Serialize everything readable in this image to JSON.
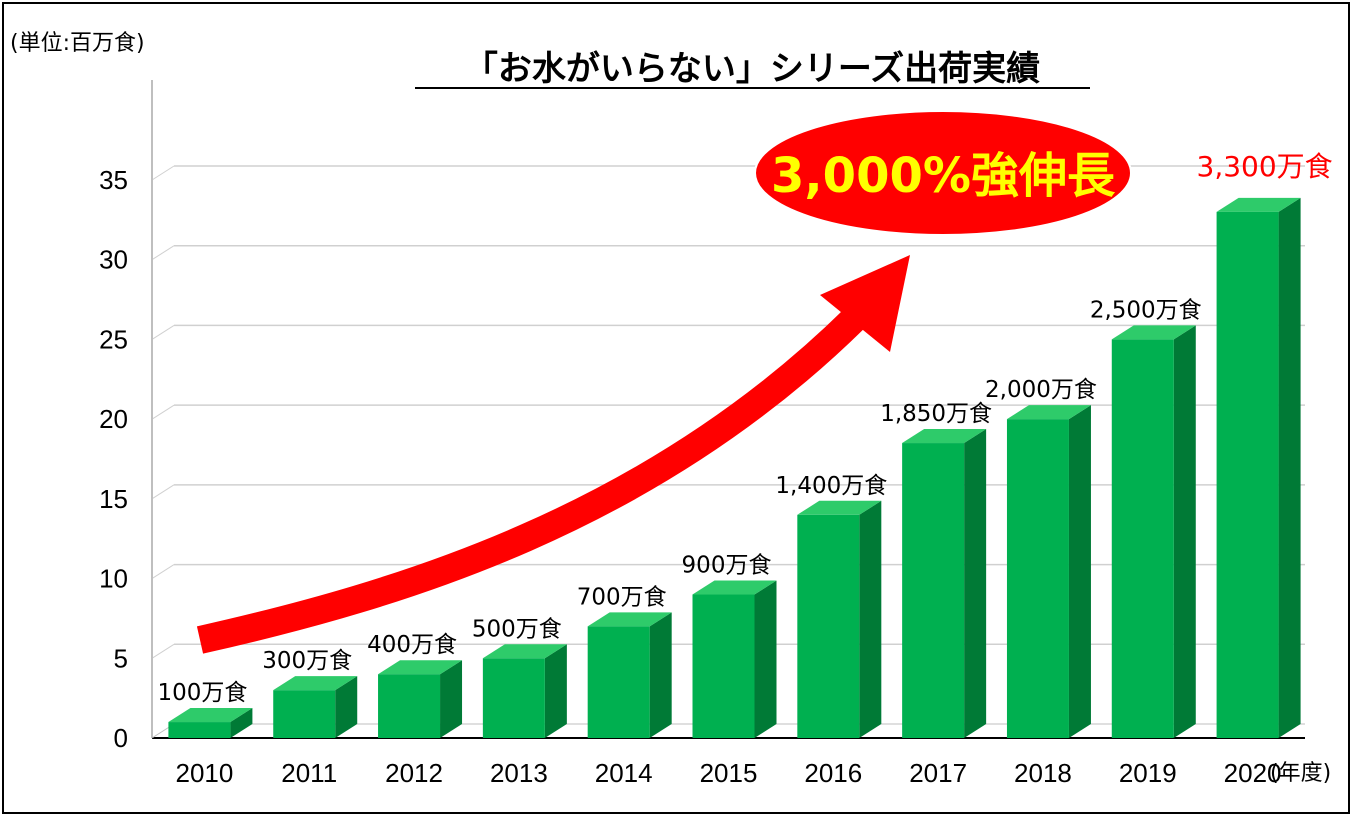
{
  "chart_data": {
    "type": "bar",
    "title": "「お水がいらない」シリーズ出荷実績",
    "unit_label": "(単位:百万食)",
    "x_unit_label": "(年度)",
    "categories": [
      "2010",
      "2011",
      "2012",
      "2013",
      "2014",
      "2015",
      "2016",
      "2017",
      "2018",
      "2019",
      "2020"
    ],
    "values": [
      1,
      3,
      4,
      5,
      7,
      9,
      14,
      18.5,
      20,
      25,
      33
    ],
    "data_labels": [
      "100万食",
      "300万食",
      "400万食",
      "500万食",
      "700万食",
      "900万食",
      "1,400万食",
      "1,850万食",
      "2,000万食",
      "2,500万食",
      "3,300万食"
    ],
    "yticks": [
      "0",
      "5",
      "10",
      "15",
      "20",
      "25",
      "30",
      "35"
    ],
    "ylim": [
      0,
      35
    ],
    "grid": true,
    "callout": "3,000%強伸長",
    "colors": {
      "bar_front": "#00b050",
      "bar_side": "#007a36",
      "bar_top": "#2ecb6a",
      "highlight_label": "#ff0000",
      "arrow": "#ff0000",
      "callout_fill": "#ff0000",
      "callout_text": "#ffff00"
    }
  }
}
